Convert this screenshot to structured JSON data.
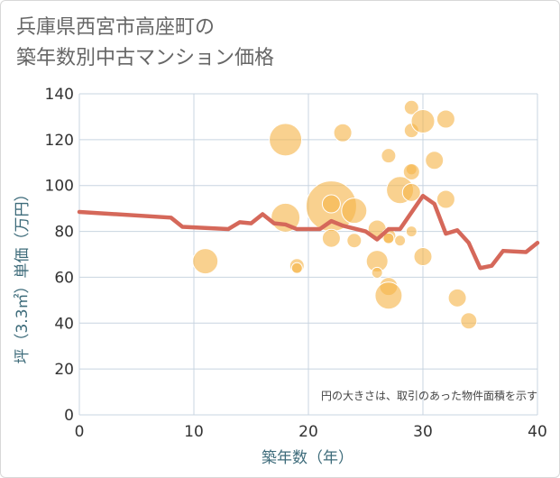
{
  "title_line1": "兵庫県西宮市高座町の",
  "title_line2": "築年数別中古マンション価格",
  "note": "円の大きさは、取引のあった物件面積を示す",
  "colors": {
    "bubble": "#f5b54a",
    "line": "#d5685a",
    "grid": "#c8d4e0",
    "axis_text": "#3d6b7a"
  },
  "chart_data": {
    "type": "scatter",
    "xlabel": "築年数（年）",
    "ylabel": "坪（3.3㎡）単価（万円）",
    "xlim": [
      0,
      40
    ],
    "ylim": [
      0,
      140
    ],
    "x_ticks": [
      0,
      10,
      20,
      30,
      40
    ],
    "y_ticks": [
      0,
      20,
      40,
      60,
      80,
      100,
      120,
      140
    ],
    "grid": true,
    "bubbles": [
      {
        "x": 11,
        "y": 67,
        "size": 14
      },
      {
        "x": 18,
        "y": 120,
        "size": 18
      },
      {
        "x": 18,
        "y": 86,
        "size": 16
      },
      {
        "x": 19,
        "y": 65,
        "size": 8
      },
      {
        "x": 19,
        "y": 64,
        "size": 6
      },
      {
        "x": 22,
        "y": 91,
        "size": 28
      },
      {
        "x": 22,
        "y": 92,
        "size": 10
      },
      {
        "x": 22,
        "y": 77,
        "size": 10
      },
      {
        "x": 23,
        "y": 123,
        "size": 10
      },
      {
        "x": 24,
        "y": 89,
        "size": 14
      },
      {
        "x": 24,
        "y": 76,
        "size": 8
      },
      {
        "x": 26,
        "y": 81,
        "size": 10
      },
      {
        "x": 26,
        "y": 67,
        "size": 12
      },
      {
        "x": 26,
        "y": 62,
        "size": 6
      },
      {
        "x": 27,
        "y": 113,
        "size": 8
      },
      {
        "x": 27,
        "y": 78,
        "size": 8
      },
      {
        "x": 27,
        "y": 77,
        "size": 6
      },
      {
        "x": 27,
        "y": 56,
        "size": 10
      },
      {
        "x": 27,
        "y": 52,
        "size": 15
      },
      {
        "x": 28,
        "y": 98,
        "size": 15
      },
      {
        "x": 28,
        "y": 76,
        "size": 6
      },
      {
        "x": 29,
        "y": 134,
        "size": 8
      },
      {
        "x": 29,
        "y": 124,
        "size": 8
      },
      {
        "x": 29,
        "y": 107,
        "size": 6
      },
      {
        "x": 29,
        "y": 106,
        "size": 9
      },
      {
        "x": 29,
        "y": 97,
        "size": 10
      },
      {
        "x": 29,
        "y": 80,
        "size": 6
      },
      {
        "x": 30,
        "y": 128,
        "size": 13
      },
      {
        "x": 30,
        "y": 69,
        "size": 10
      },
      {
        "x": 31,
        "y": 111,
        "size": 10
      },
      {
        "x": 32,
        "y": 129,
        "size": 10
      },
      {
        "x": 32,
        "y": 94,
        "size": 10
      },
      {
        "x": 33,
        "y": 51,
        "size": 10
      },
      {
        "x": 34,
        "y": 41,
        "size": 9
      }
    ],
    "line": {
      "x": [
        0,
        8,
        9,
        13,
        14,
        15,
        16,
        17,
        18,
        19,
        21,
        22,
        23,
        25,
        26,
        27,
        28,
        30,
        31,
        32,
        33,
        34,
        35,
        36,
        37,
        39,
        40
      ],
      "y": [
        88.5,
        86,
        82,
        81,
        84,
        83.5,
        87.5,
        83.5,
        83,
        81,
        81,
        84.5,
        82.5,
        80,
        76.5,
        81,
        81,
        95.5,
        92,
        79,
        80.5,
        75,
        64,
        65,
        71.5,
        71,
        75
      ]
    }
  }
}
